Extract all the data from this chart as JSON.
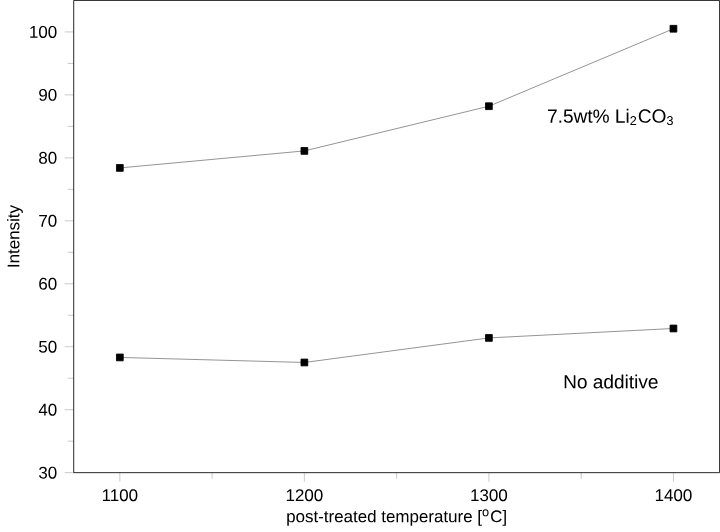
{
  "chart_data": {
    "type": "line",
    "xlabel": "post-treated temperature [$^{o}$C]",
    "ylabel": "Intensity",
    "x": [
      1100,
      1200,
      1300,
      1400
    ],
    "series": [
      {
        "name": "7.5wt% Li$_{2}$CO$_{3}$",
        "color": "#000000",
        "values": [
          78.4,
          81.1,
          88.2,
          100.5
        ]
      },
      {
        "name": "No additive",
        "color": "#000000",
        "values": [
          48.3,
          47.5,
          51.4,
          52.9
        ]
      }
    ],
    "xlim": [
      1075,
      1425
    ],
    "ylim": [
      30,
      105
    ],
    "xticks": [
      1100,
      1200,
      1300,
      1400
    ],
    "yticks": [
      30,
      40,
      50,
      60,
      70,
      80,
      90,
      100
    ],
    "grid": false,
    "marker": "square",
    "line_style": "solid"
  }
}
